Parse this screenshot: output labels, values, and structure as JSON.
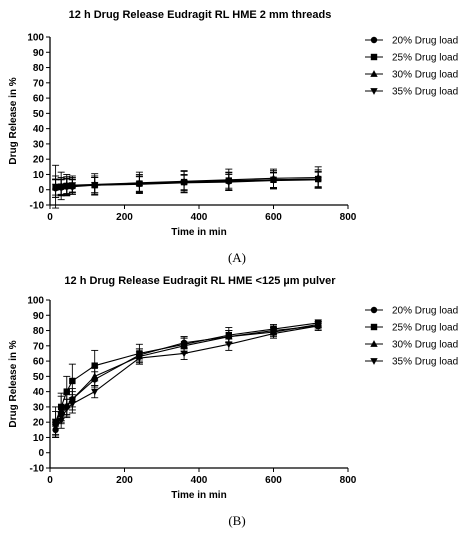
{
  "chart_data": [
    {
      "type": "scatter",
      "panel_label": "(A)",
      "title": "12 h Drug Release Eudragit RL HME 2 mm threads",
      "xlabel": "Time in min",
      "ylabel": "Drug Release in %",
      "xlim": [
        0,
        800
      ],
      "ylim": [
        -10,
        100
      ],
      "xticks": [
        0,
        200,
        400,
        600,
        800
      ],
      "yticks": [
        -10,
        0,
        10,
        20,
        30,
        40,
        50,
        60,
        70,
        80,
        90,
        100
      ],
      "x": [
        15,
        30,
        45,
        60,
        120,
        240,
        360,
        480,
        600,
        720
      ],
      "legend_position": "right",
      "series": [
        {
          "name": "20% Drug load",
          "marker": "circle",
          "values": [
            1,
            1.5,
            2,
            2,
            3,
            4,
            5,
            5.5,
            6.5,
            7
          ],
          "errors": [
            6,
            5,
            5,
            5,
            6,
            6,
            7,
            6,
            6,
            6
          ]
        },
        {
          "name": "25% Drug load",
          "marker": "square",
          "values": [
            1.5,
            2,
            2.5,
            2.5,
            3,
            4,
            5,
            6,
            6.5,
            7
          ],
          "errors": [
            5,
            5,
            5,
            4,
            5,
            5,
            5,
            5,
            5,
            5
          ]
        },
        {
          "name": "30% Drug load",
          "marker": "triangle-up",
          "values": [
            2,
            2.5,
            3,
            3,
            3.5,
            4.5,
            5.5,
            6.5,
            7.5,
            8
          ],
          "errors": [
            14,
            9,
            7,
            6,
            7,
            7,
            7,
            7,
            6,
            7
          ]
        },
        {
          "name": "35% Drug load",
          "marker": "triangle-down",
          "values": [
            2,
            2,
            2.5,
            3,
            3,
            3.5,
            4.5,
            5,
            6,
            6.5
          ],
          "errors": [
            7,
            6,
            6,
            5,
            5,
            5,
            5,
            5,
            5,
            5
          ]
        }
      ]
    },
    {
      "type": "scatter",
      "panel_label": "(B)",
      "title": "12 h Drug Release Eudragit RL HME <125 µm pulver",
      "xlabel": "Time in min",
      "ylabel": "Drug Release in %",
      "xlim": [
        0,
        800
      ],
      "ylim": [
        -10,
        100
      ],
      "xticks": [
        0,
        200,
        400,
        600,
        800
      ],
      "yticks": [
        -10,
        0,
        10,
        20,
        30,
        40,
        50,
        60,
        70,
        80,
        90,
        100
      ],
      "x": [
        15,
        30,
        45,
        60,
        120,
        240,
        360,
        480,
        600,
        720
      ],
      "legend_position": "right",
      "series": [
        {
          "name": "20% Drug load",
          "marker": "circle",
          "values": [
            15,
            25,
            30,
            35,
            48,
            64,
            72,
            76,
            80,
            83
          ],
          "errors": [
            5,
            5,
            5,
            5,
            5,
            4,
            4,
            4,
            3,
            3
          ]
        },
        {
          "name": "25% Drug load",
          "marker": "square",
          "values": [
            20,
            30,
            40,
            47,
            57,
            65,
            71,
            77,
            81,
            85
          ],
          "errors": [
            10,
            9,
            10,
            11,
            10,
            6,
            5,
            5,
            3,
            2
          ]
        },
        {
          "name": "30% Drug load",
          "marker": "triangle-up",
          "values": [
            19,
            28,
            31,
            35,
            50,
            63,
            70,
            76,
            79,
            84
          ],
          "errors": [
            8,
            9,
            7,
            7,
            6,
            5,
            5,
            4,
            3,
            2
          ]
        },
        {
          "name": "35% Drug load",
          "marker": "triangle-down",
          "values": [
            17,
            21,
            29,
            32,
            40,
            62,
            65,
            71,
            78,
            83
          ],
          "errors": [
            5,
            5,
            6,
            6,
            4,
            4,
            4,
            4,
            3,
            2
          ]
        }
      ]
    }
  ]
}
